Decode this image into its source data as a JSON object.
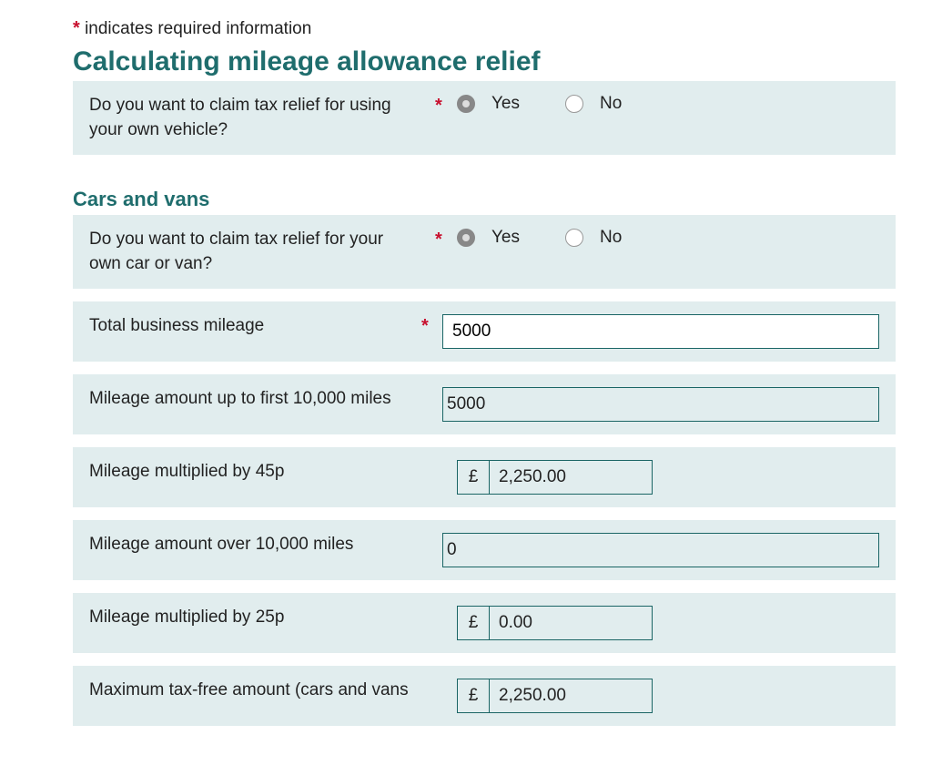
{
  "required_note_prefix": "*",
  "required_note_text": " indicates required information",
  "main_heading": "Calculating mileage allowance relief",
  "section1": {
    "question": "Do you want to claim tax relief for using your own vehicle?",
    "required": true,
    "yes_label": "Yes",
    "no_label": "No",
    "selected": "yes"
  },
  "sub_heading": "Cars and vans",
  "section2": {
    "question": "Do you want to claim tax relief for your own car or van?",
    "required": true,
    "yes_label": "Yes",
    "no_label": "No",
    "selected": "yes"
  },
  "rows": {
    "total_mileage": {
      "label": "Total business mileage",
      "required": true,
      "value": "5000"
    },
    "first_10000": {
      "label": "Mileage amount up to first 10,000 miles",
      "value": "5000"
    },
    "multiplied_45p": {
      "label": "Mileage multiplied by 45p",
      "currency": "£",
      "value": "2,250.00"
    },
    "over_10000": {
      "label": "Mileage amount over 10,000 miles",
      "value": "0"
    },
    "multiplied_25p": {
      "label": "Mileage multiplied by 25p",
      "currency": "£",
      "value": "0.00"
    },
    "max_taxfree": {
      "label": "Maximum tax-free amount (cars and vans",
      "currency": "£",
      "value": "2,250.00"
    }
  },
  "colors": {
    "panel_bg": "#e1edee",
    "heading_color": "#1f6d6d",
    "border_color": "#1a6565",
    "asterisk_color": "#c8102e",
    "text_color": "#222222",
    "input_bg": "#ffffff"
  }
}
